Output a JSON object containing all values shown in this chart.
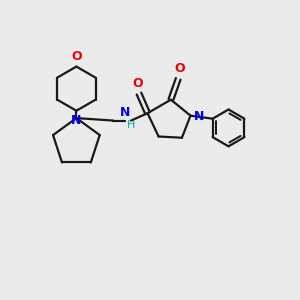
{
  "bg_color": "#ebebeb",
  "bond_color": "#1a1a1a",
  "N_color": "#0000ee",
  "O_color": "#ee0000",
  "H_color": "#00aaaa",
  "line_width": 1.6,
  "figsize": [
    3.0,
    3.0
  ],
  "dpi": 100,
  "xlim": [
    0,
    12
  ],
  "ylim": [
    0,
    12
  ]
}
